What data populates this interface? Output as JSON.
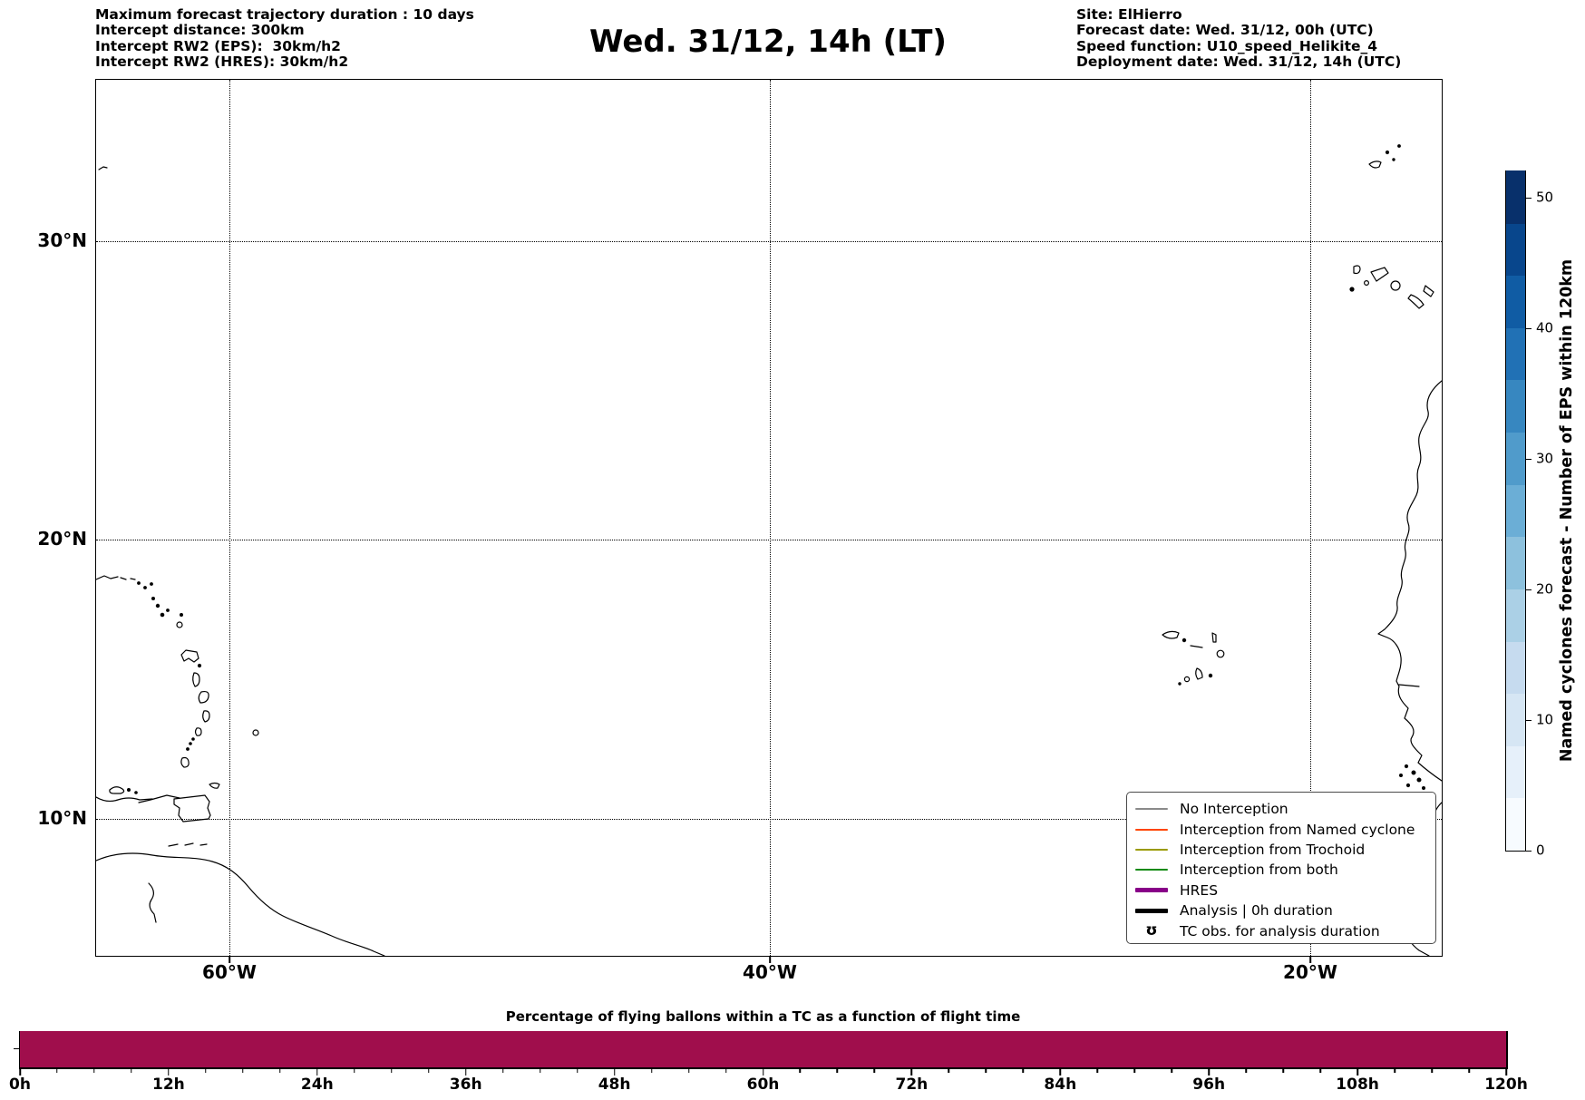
{
  "header": {
    "left_lines": [
      "Maximum forecast trajectory duration : 10 days",
      "Intercept distance: 300km",
      "Intercept RW2 (EPS):  30km/h2",
      "Intercept RW2 (HRES): 30km/h2"
    ],
    "title": "Wed. 31/12, 14h (LT)",
    "right_lines": [
      "Site: ElHierro",
      "Forecast date: Wed. 31/12, 00h (UTC)",
      "Speed function: U10_speed_Helikite_4",
      "Deployment date: Wed. 31/12, 14h (UTC)"
    ]
  },
  "map": {
    "x_tick_labels": [
      "60°W",
      "40°W",
      "20°W"
    ],
    "y_tick_labels": [
      "30°N",
      "20°N",
      "10°N"
    ],
    "gridline_style": "dotted"
  },
  "legend": {
    "items": [
      {
        "label": "No Interception",
        "type": "line",
        "color": "#8a8a8a",
        "line_width": 2
      },
      {
        "label": "Interception from Named cyclone",
        "type": "line",
        "color": "#ff4500",
        "line_width": 2
      },
      {
        "label": "Interception from Trochoid",
        "type": "line",
        "color": "#9a9a00",
        "line_width": 2
      },
      {
        "label": "Interception from both",
        "type": "line",
        "color": "#0e8a0e",
        "line_width": 2
      },
      {
        "label": "HRES",
        "type": "line",
        "color": "#880088",
        "line_width": 5
      },
      {
        "label": "Analysis | 0h duration",
        "type": "line",
        "color": "#000000",
        "line_width": 5
      },
      {
        "label": "TC obs. for analysis duration",
        "type": "marker",
        "marker": "ʊ",
        "color": "#000000"
      }
    ]
  },
  "colorbar": {
    "label": "Named cyclones forecast - Number of EPS within 120km",
    "ticks": [
      0,
      10,
      20,
      30,
      40,
      50
    ],
    "vmin": 0,
    "vmax": 52,
    "band_colors_bottom_to_top": [
      "#f7fbff",
      "#e6f0fa",
      "#d6e6f4",
      "#c6dbef",
      "#abd0e6",
      "#8dc1dd",
      "#6baed6",
      "#509bcb",
      "#3787c0",
      "#2171b5",
      "#105ca4",
      "#08468c",
      "#08306b"
    ]
  },
  "bottom_chart": {
    "title": "Percentage of flying ballons within a TC as a function of flight time",
    "x_tick_labels": [
      "0h",
      "12h",
      "24h",
      "36h",
      "48h",
      "60h",
      "72h",
      "84h",
      "96h",
      "108h",
      "120h"
    ],
    "bar_color": "#a00e4c"
  },
  "chart_data": [
    {
      "type": "map",
      "title": "Wed. 31/12, 14h (LT)",
      "x_tick_labels": [
        "60°W",
        "40°W",
        "20°W"
      ],
      "y_tick_labels": [
        "30°N",
        "20°N",
        "10°N"
      ],
      "grid": true,
      "gridline_style": "dotted",
      "coastline_features": [
        "Bermuda fragment (top left edge)",
        "Puerto Rico / Virgin Islands fragments (left edge)",
        "Lesser Antilles arc: Antigua, Guadeloupe, Dominica, Martinique, St Lucia, St Vincent, Grenada, Barbados",
        "Trinidad, Tobago and Venezuelan coast with Orinoco delta (bottom left)",
        "Madeira (top right)",
        "Canary Islands (top right)",
        "Cape Verde islands (centre right)",
        "West African coastline from Western Sahara to Guinea (right edge)"
      ],
      "overlays_plotted": "no trajectory lines visible on map",
      "legend_position": "lower right",
      "colorbar": {
        "label": "Named cyclones forecast - Number of EPS within 120km",
        "ticks": [
          0,
          10,
          20,
          30,
          40,
          50
        ],
        "range": [
          0,
          52
        ],
        "colormap": "Blues, 13 discrete steps"
      }
    },
    {
      "type": "bar",
      "title": "Percentage of flying ballons within a TC as a function of flight time",
      "x_tick_labels": [
        "0h",
        "12h",
        "24h",
        "36h",
        "48h",
        "60h",
        "72h",
        "84h",
        "96h",
        "108h",
        "120h"
      ],
      "x_range_hours": [
        0,
        120
      ],
      "x_minor_tick_every_hours": 3,
      "bar_color": "#a00e4c",
      "values_note": "single continuous full-height bar spanning 0h to 120h at constant height; y-axis tick labels not visible in image",
      "grid": false
    }
  ]
}
